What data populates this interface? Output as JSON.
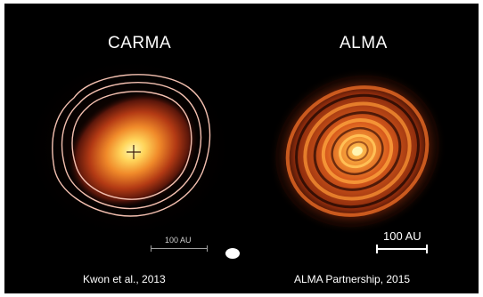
{
  "left_panel": {
    "title": "CARMA",
    "credit": "Kwon et al., 2013",
    "scale_label": "100 AU"
  },
  "right_panel": {
    "title": "ALMA",
    "credit": "ALMA Partnership, 2015",
    "scale_label": "100 AU"
  },
  "colors": {
    "background": "#000000",
    "core": "#fff6a8",
    "emission": "#e2571b",
    "contour": "#f4c0b0"
  }
}
